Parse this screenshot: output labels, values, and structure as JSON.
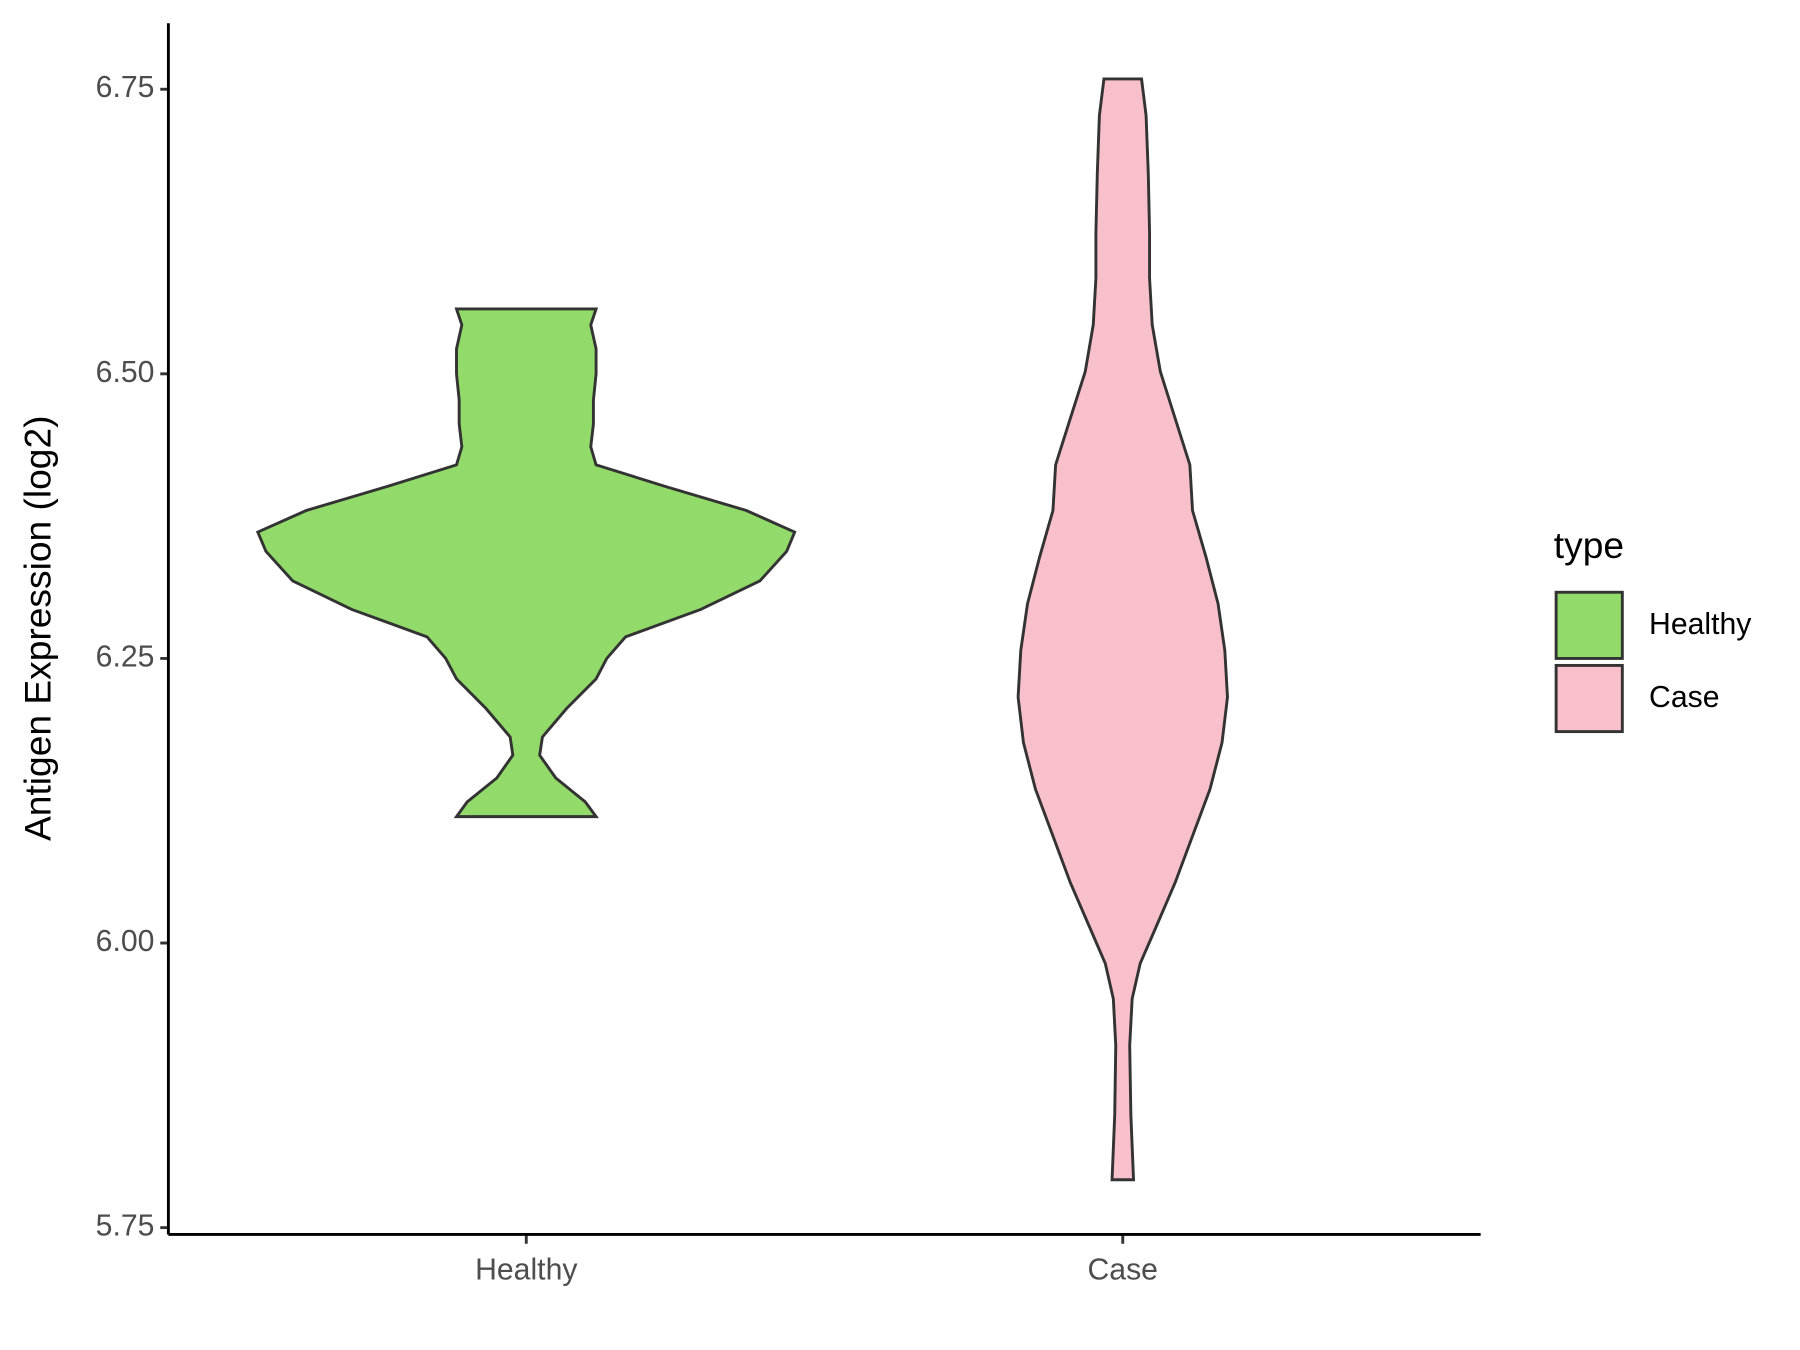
{
  "chart_data": {
    "type": "violin",
    "ylabel": "Antigen Expression (log2)",
    "categories": [
      "Healthy",
      "Case"
    ],
    "legend_title": "type",
    "legend": "right",
    "ylim": [
      5.744,
      6.808
    ],
    "yticks": [
      {
        "value": 5.75,
        "label": "5.75"
      },
      {
        "value": 6.0,
        "label": "6.00"
      },
      {
        "value": 6.25,
        "label": "6.25"
      },
      {
        "value": 6.5,
        "label": "6.50"
      },
      {
        "value": 6.75,
        "label": "6.75"
      }
    ],
    "series": [
      {
        "name": "Healthy",
        "color": "#92db6a",
        "values": [
          6.111,
          6.124,
          6.145,
          6.165,
          6.181,
          6.206,
          6.232,
          6.25,
          6.269,
          6.293,
          6.318,
          6.344,
          6.361,
          6.38,
          6.401,
          6.42,
          6.436,
          6.456,
          6.477,
          6.5,
          6.522,
          6.543,
          6.557
        ],
        "widths": [
          0.26,
          0.22,
          0.11,
          0.05,
          0.06,
          0.15,
          0.26,
          0.3,
          0.37,
          0.65,
          0.87,
          0.97,
          1.0,
          0.82,
          0.52,
          0.26,
          0.24,
          0.25,
          0.25,
          0.26,
          0.26,
          0.24,
          0.26
        ]
      },
      {
        "name": "Case",
        "color": "#f8c0cb",
        "values": [
          5.792,
          5.849,
          5.91,
          5.951,
          5.982,
          6.012,
          6.053,
          6.094,
          6.135,
          6.176,
          6.216,
          6.257,
          6.298,
          6.339,
          6.38,
          6.42,
          6.461,
          6.502,
          6.543,
          6.584,
          6.624,
          6.676,
          6.727,
          6.759
        ],
        "widths": [
          0.04,
          0.03,
          0.026,
          0.035,
          0.065,
          0.12,
          0.195,
          0.26,
          0.325,
          0.37,
          0.39,
          0.38,
          0.355,
          0.31,
          0.26,
          0.25,
          0.195,
          0.14,
          0.11,
          0.1,
          0.1,
          0.095,
          0.087,
          0.07
        ]
      }
    ]
  }
}
